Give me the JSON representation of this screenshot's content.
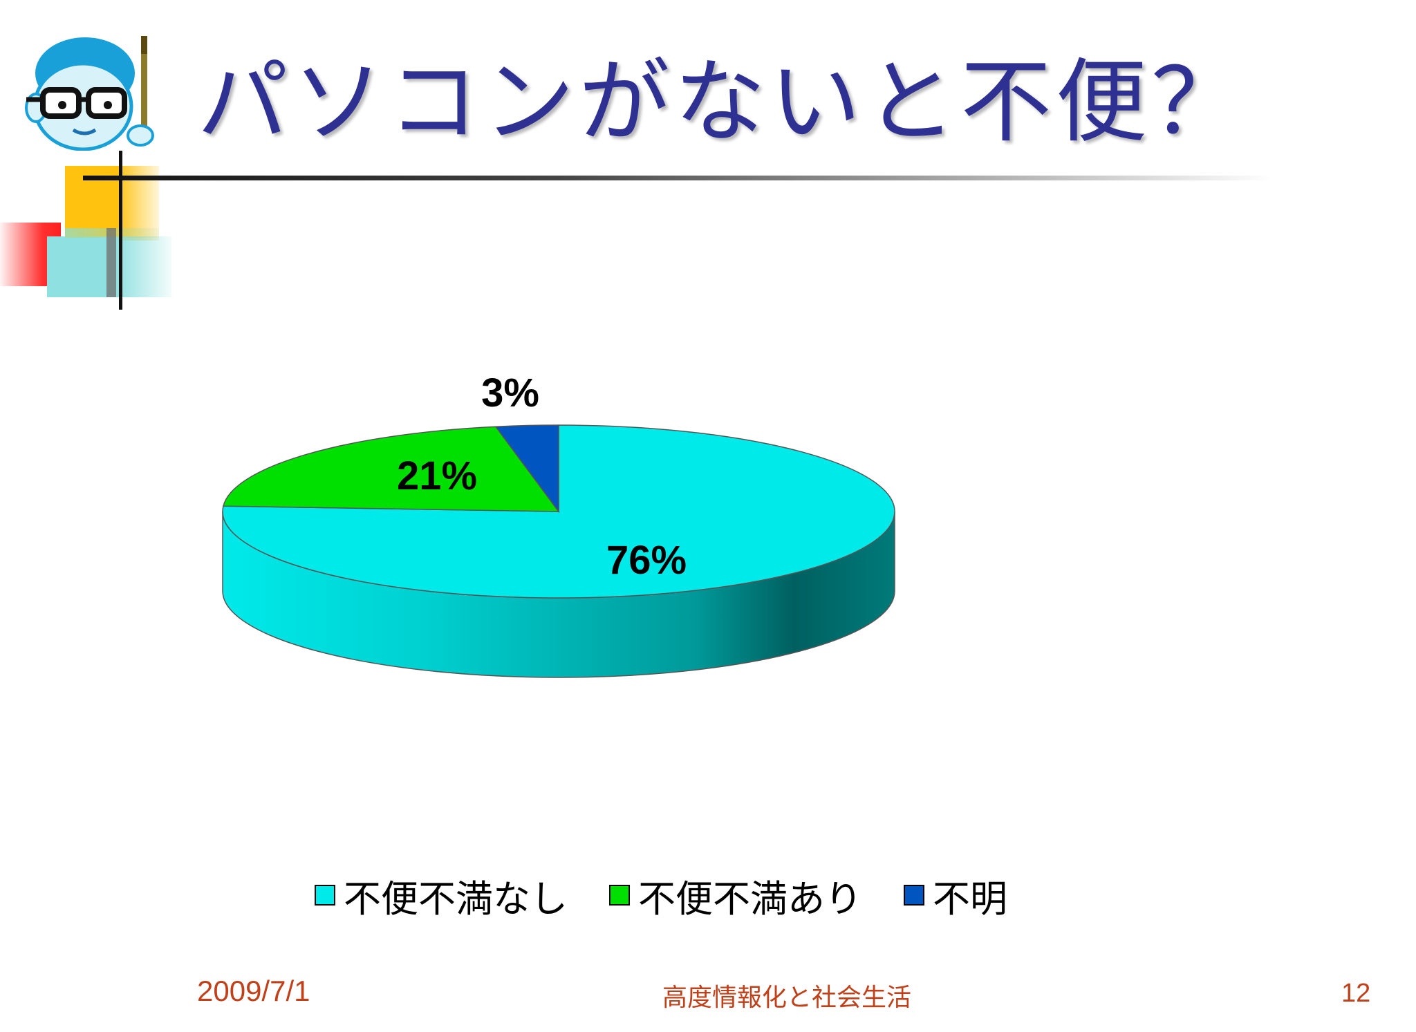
{
  "slide": {
    "title": "パソコンがないと不便？",
    "footer": {
      "date": "2009/7/1",
      "course": "高度情報化と社会生活",
      "page": "12"
    }
  },
  "chart_data": {
    "type": "pie",
    "title": "",
    "slices": [
      {
        "label": "不便不満なし",
        "value": 76,
        "display": "76%",
        "color": "#00eaea"
      },
      {
        "label": "不便不満あり",
        "value": 21,
        "display": "21%",
        "color": "#00e000"
      },
      {
        "label": "不明",
        "value": 3,
        "display": "3%",
        "color": "#0055c0"
      }
    ],
    "legend_position": "bottom",
    "style": "3d"
  }
}
